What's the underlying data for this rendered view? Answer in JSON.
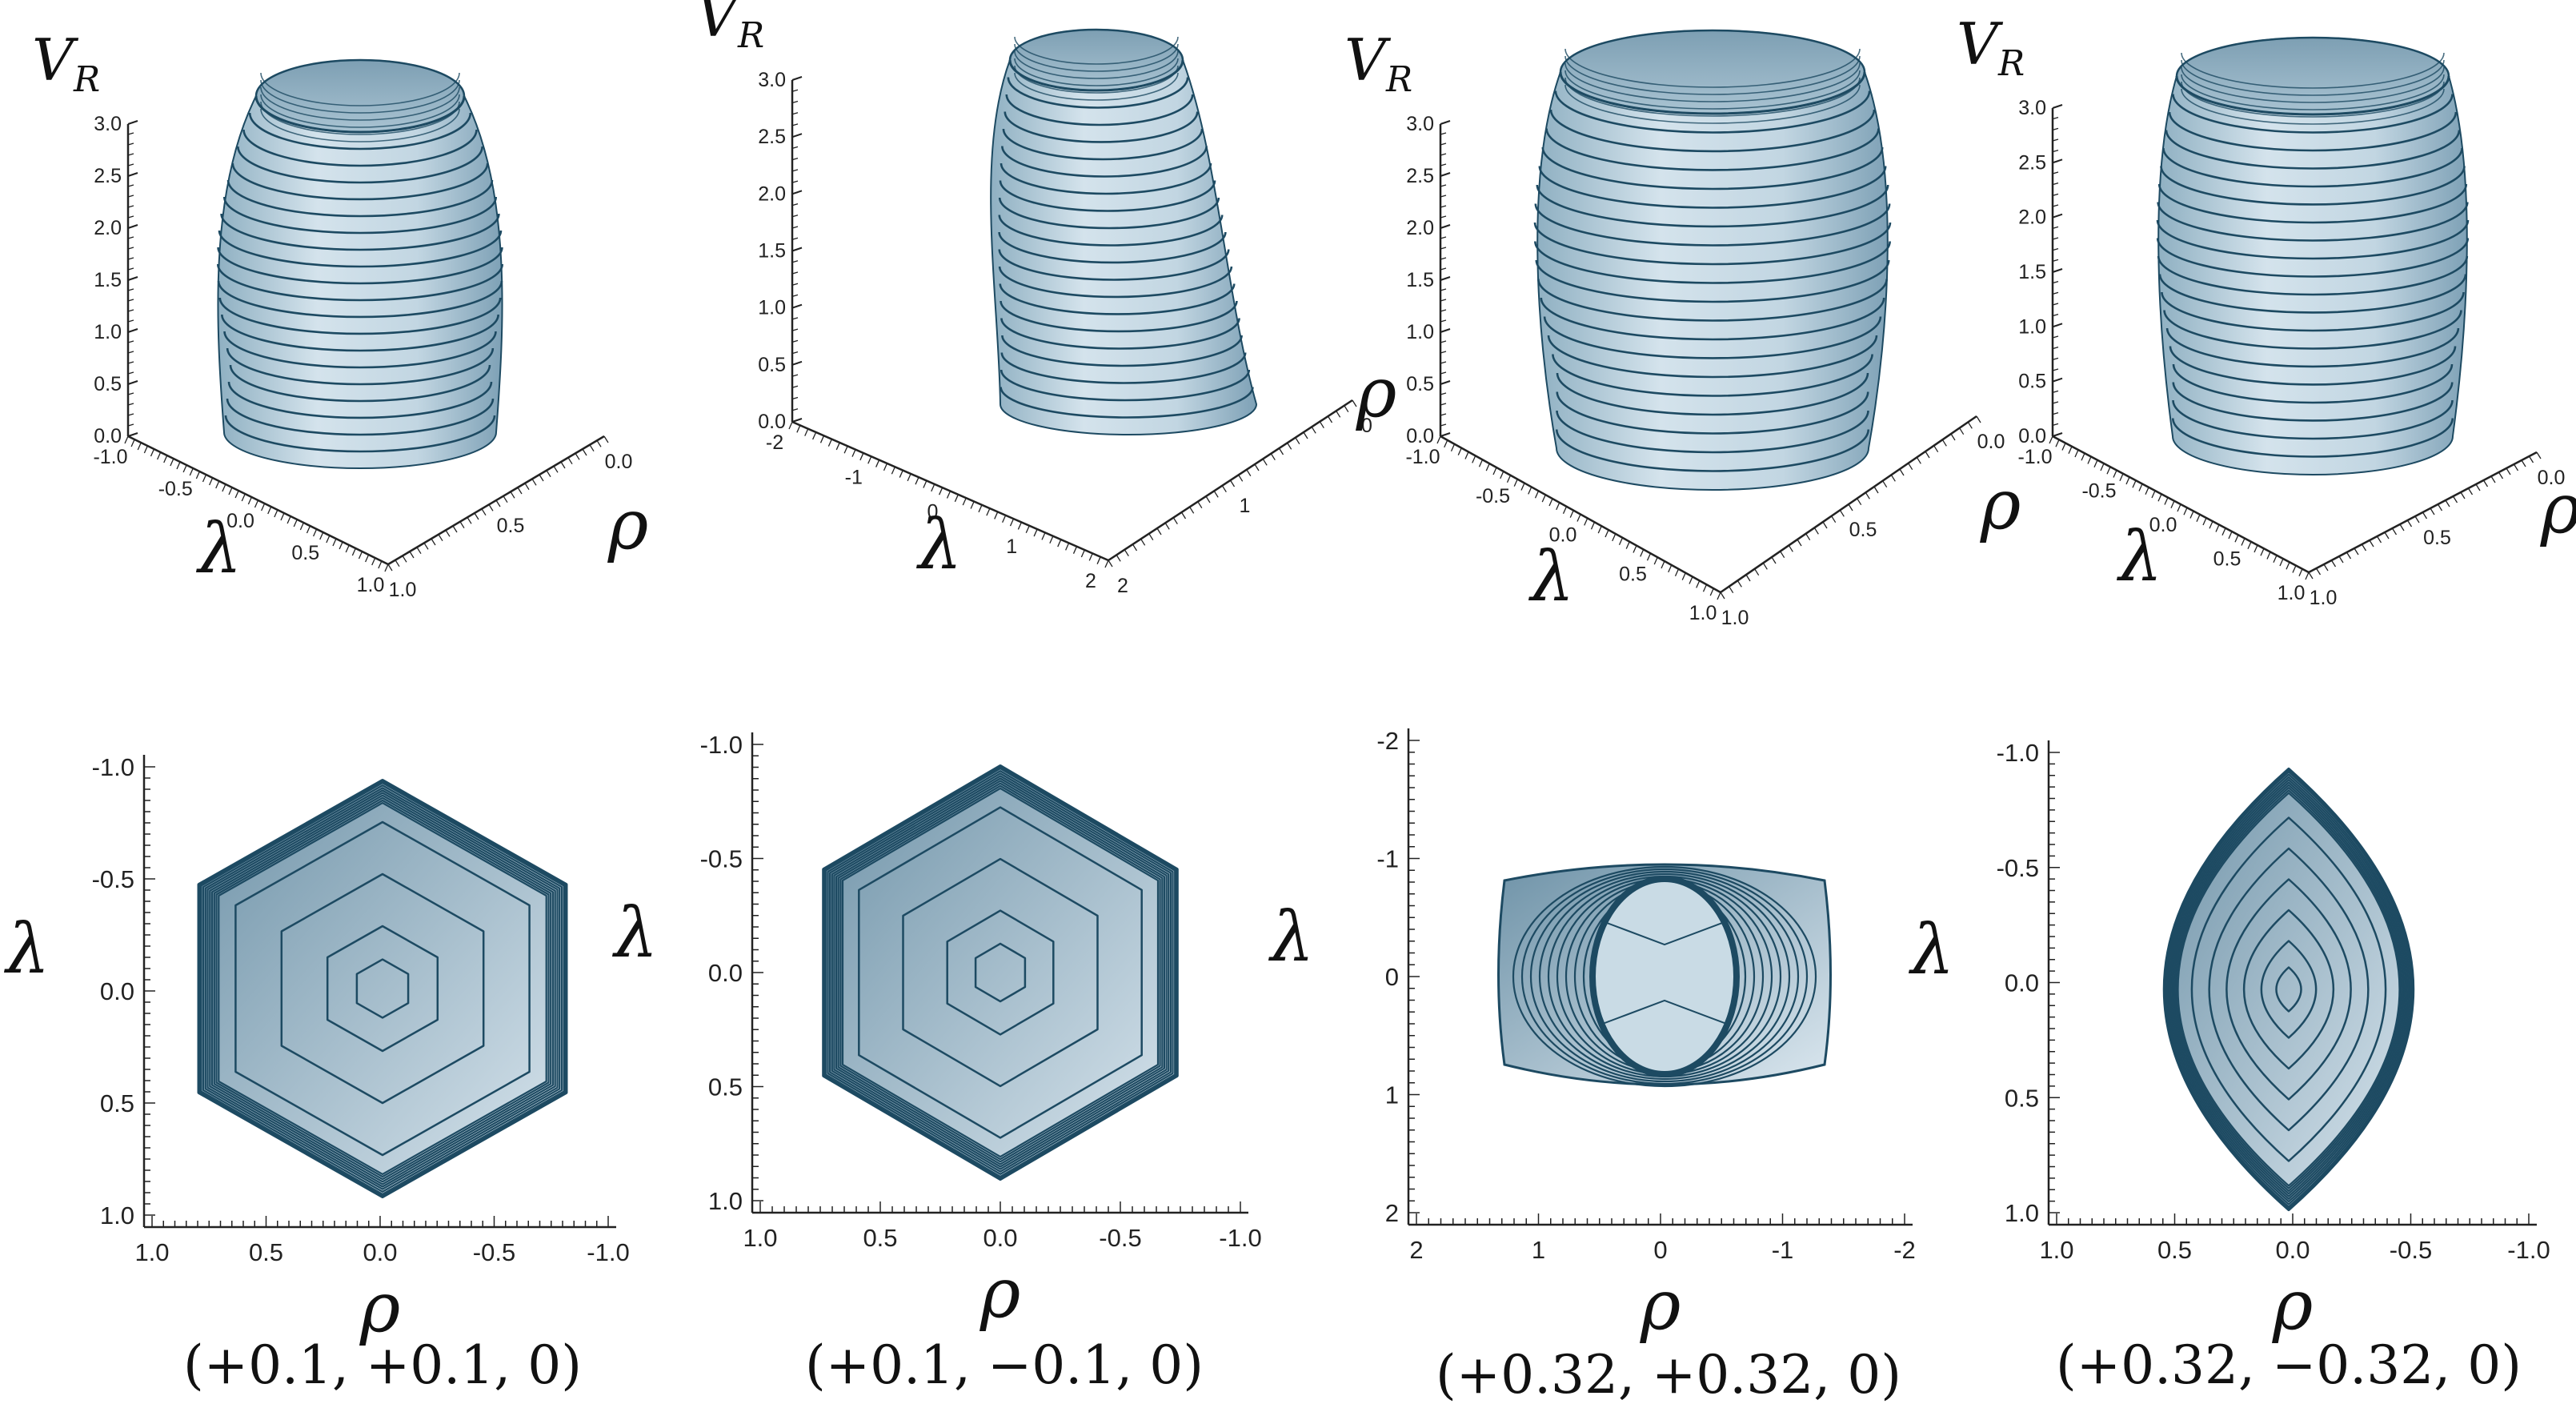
{
  "figure": {
    "v_label": "V",
    "v_sub": "R",
    "lambda_label": "λ",
    "rho_label": "ρ",
    "colors": {
      "fill": "#b9cfdb",
      "line": "#1d4a62",
      "axis": "#222222"
    },
    "panels": [
      {
        "caption": "(+0.1, +0.1, 0)",
        "top_view": {
          "v_ticks": [
            "0.0",
            "0.5",
            "1.0",
            "1.5",
            "2.0",
            "2.5",
            "3.0"
          ],
          "lambda_ticks": [
            "-1.0",
            "-0.5",
            "0.0",
            "0.5",
            "1.0"
          ],
          "rho_ticks": [
            "0.0",
            "0.5",
            "1.0"
          ]
        },
        "bottom_view": {
          "lambda_ticks": [
            "-1.0",
            "-0.5",
            "0.0",
            "0.5",
            "1.0"
          ],
          "rho_ticks": [
            "1.0",
            "0.5",
            "0.0",
            "-0.5",
            "-1.0"
          ]
        }
      },
      {
        "caption": "(+0.1, −0.1, 0)",
        "top_view": {
          "v_ticks": [
            "0.0",
            "0.5",
            "1.0",
            "1.5",
            "2.0",
            "2.5",
            "3.0"
          ],
          "lambda_ticks": [
            "-2",
            "-1",
            "0",
            "1",
            "2"
          ],
          "rho_ticks": [
            "0",
            "1",
            "2"
          ]
        },
        "bottom_view": {
          "lambda_ticks": [
            "-1.0",
            "-0.5",
            "0.0",
            "0.5",
            "1.0"
          ],
          "rho_ticks": [
            "1.0",
            "0.5",
            "0.0",
            "-0.5",
            "-1.0"
          ]
        }
      },
      {
        "caption": "(+0.32, +0.32, 0)",
        "top_view": {
          "v_ticks": [
            "0.0",
            "0.5",
            "1.0",
            "1.5",
            "2.0",
            "2.5",
            "3.0"
          ],
          "lambda_ticks": [
            "-1.0",
            "-0.5",
            "0.0",
            "0.5",
            "1.0"
          ],
          "rho_ticks": [
            "0.0",
            "0.5",
            "1.0"
          ]
        },
        "bottom_view": {
          "lambda_ticks": [
            "-2",
            "-1",
            "0",
            "1",
            "2"
          ],
          "rho_ticks": [
            "2",
            "1",
            "0",
            "-1",
            "-2"
          ]
        }
      },
      {
        "caption": "(+0.32, −0.32, 0)",
        "top_view": {
          "v_ticks": [
            "0.0",
            "0.5",
            "1.0",
            "1.5",
            "2.0",
            "2.5",
            "3.0"
          ],
          "lambda_ticks": [
            "-1.0",
            "-0.5",
            "0.0",
            "0.5",
            "1.0"
          ],
          "rho_ticks": [
            "0.0",
            "0.5",
            "1.0"
          ]
        },
        "bottom_view": {
          "lambda_ticks": [
            "-1.0",
            "-0.5",
            "0.0",
            "0.5",
            "1.0"
          ],
          "rho_ticks": [
            "1.0",
            "0.5",
            "0.0",
            "-0.5",
            "-1.0"
          ]
        }
      }
    ]
  }
}
